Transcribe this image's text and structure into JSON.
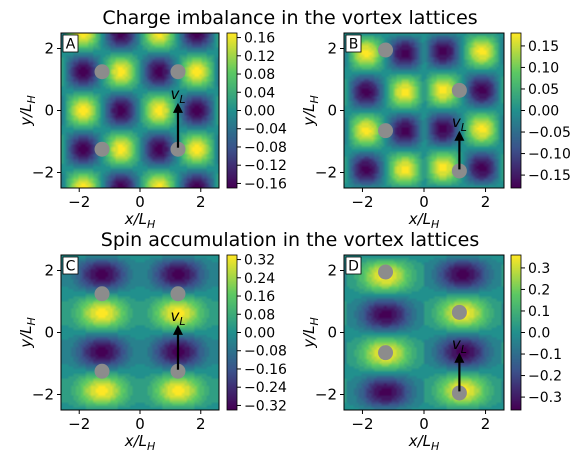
{
  "figure_titles": {
    "top": "Charge imbalance in the vortex lattices",
    "bottom": "Spin accumulation in the vortex lattices"
  },
  "colormap": [
    "#440154",
    "#3b528b",
    "#21908d",
    "#5dc963",
    "#fde725"
  ],
  "vortex_color": "#8c8c8c",
  "chart_data": [
    {
      "type": "heatmap",
      "panel_label": "A",
      "quantity": "charge imbalance",
      "lattice": "square",
      "xlabel": "x/L_H",
      "ylabel": "y/L_H",
      "xlim": [
        -2.6,
        2.6
      ],
      "ylim": [
        -2.5,
        2.5
      ],
      "xticks": [
        "−2",
        "0",
        "2"
      ],
      "yticks": [
        "−2",
        "0",
        "2"
      ],
      "colorbar": {
        "min": -0.17,
        "max": 0.17,
        "ticks": [
          "0.16",
          "0.12",
          "0.08",
          "0.04",
          "0.00",
          "−0.04",
          "−0.08",
          "−0.12",
          "−0.16"
        ],
        "tick_values": [
          0.16,
          0.12,
          0.08,
          0.04,
          0.0,
          -0.04,
          -0.08,
          -0.12,
          -0.16
        ]
      },
      "vortices": [
        [
          -1.25,
          1.25
        ],
        [
          1.25,
          1.25
        ],
        [
          -1.25,
          -1.25
        ],
        [
          1.25,
          -1.25
        ]
      ],
      "arrow": {
        "label": "v_L",
        "from": [
          1.25,
          -1.2
        ],
        "to": [
          1.25,
          0.15
        ]
      }
    },
    {
      "type": "heatmap",
      "panel_label": "B",
      "quantity": "charge imbalance",
      "lattice": "triangular",
      "xlabel": "x/L_H",
      "ylabel": "y/L_H",
      "xlim": [
        -2.6,
        2.6
      ],
      "ylim": [
        -2.5,
        2.5
      ],
      "xticks": [
        "−2",
        "0",
        "2"
      ],
      "yticks": [
        "−2",
        "0",
        "2"
      ],
      "colorbar": {
        "min": -0.18,
        "max": 0.18,
        "ticks": [
          "0.15",
          "0.10",
          "0.05",
          "0.00",
          "−0.05",
          "−0.10",
          "−0.15"
        ],
        "tick_values": [
          0.15,
          0.1,
          0.05,
          0.0,
          -0.05,
          -0.1,
          -0.15
        ]
      },
      "vortices": [
        [
          -1.25,
          1.95
        ],
        [
          1.15,
          0.65
        ],
        [
          -1.25,
          -0.65
        ],
        [
          1.15,
          -1.95
        ]
      ],
      "arrow": {
        "label": "v_L",
        "from": [
          1.15,
          -1.9
        ],
        "to": [
          1.15,
          -0.75
        ]
      }
    },
    {
      "type": "heatmap",
      "panel_label": "C",
      "quantity": "spin accumulation",
      "lattice": "square",
      "xlabel": "x/L_H",
      "ylabel": "y/L_H",
      "xlim": [
        -2.6,
        2.6
      ],
      "ylim": [
        -2.5,
        2.5
      ],
      "xticks": [
        "−2",
        "0",
        "2"
      ],
      "yticks": [
        "−2",
        "0",
        "2"
      ],
      "colorbar": {
        "min": -0.34,
        "max": 0.34,
        "ticks": [
          "0.32",
          "0.24",
          "0.16",
          "0.08",
          "0.00",
          "−0.08",
          "−0.16",
          "−0.24",
          "−0.32"
        ],
        "tick_values": [
          0.32,
          0.24,
          0.16,
          0.08,
          0.0,
          -0.08,
          -0.16,
          -0.24,
          -0.32
        ]
      },
      "vortices": [
        [
          -1.25,
          1.25
        ],
        [
          1.25,
          1.25
        ],
        [
          -1.25,
          -1.25
        ],
        [
          1.25,
          -1.25
        ]
      ],
      "arrow": {
        "label": "v_L",
        "from": [
          1.25,
          -1.2
        ],
        "to": [
          1.25,
          0.15
        ]
      }
    },
    {
      "type": "heatmap",
      "panel_label": "D",
      "quantity": "spin accumulation",
      "lattice": "triangular",
      "xlabel": "x/L_H",
      "ylabel": "y/L_H",
      "xlim": [
        -2.6,
        2.6
      ],
      "ylim": [
        -2.5,
        2.5
      ],
      "xticks": [
        "−2",
        "0",
        "2"
      ],
      "yticks": [
        "−2",
        "0",
        "2"
      ],
      "colorbar": {
        "min": -0.36,
        "max": 0.36,
        "ticks": [
          "0.3",
          "0.2",
          "0.1",
          "0.0",
          "−0.1",
          "−0.2",
          "−0.3"
        ],
        "tick_values": [
          0.3,
          0.2,
          0.1,
          0.0,
          -0.1,
          -0.2,
          -0.3
        ]
      },
      "vortices": [
        [
          -1.25,
          1.95
        ],
        [
          1.15,
          0.65
        ],
        [
          -1.25,
          -0.65
        ],
        [
          1.15,
          -1.95
        ]
      ],
      "arrow": {
        "label": "v_L",
        "from": [
          1.15,
          -1.9
        ],
        "to": [
          1.15,
          -0.75
        ]
      }
    }
  ]
}
